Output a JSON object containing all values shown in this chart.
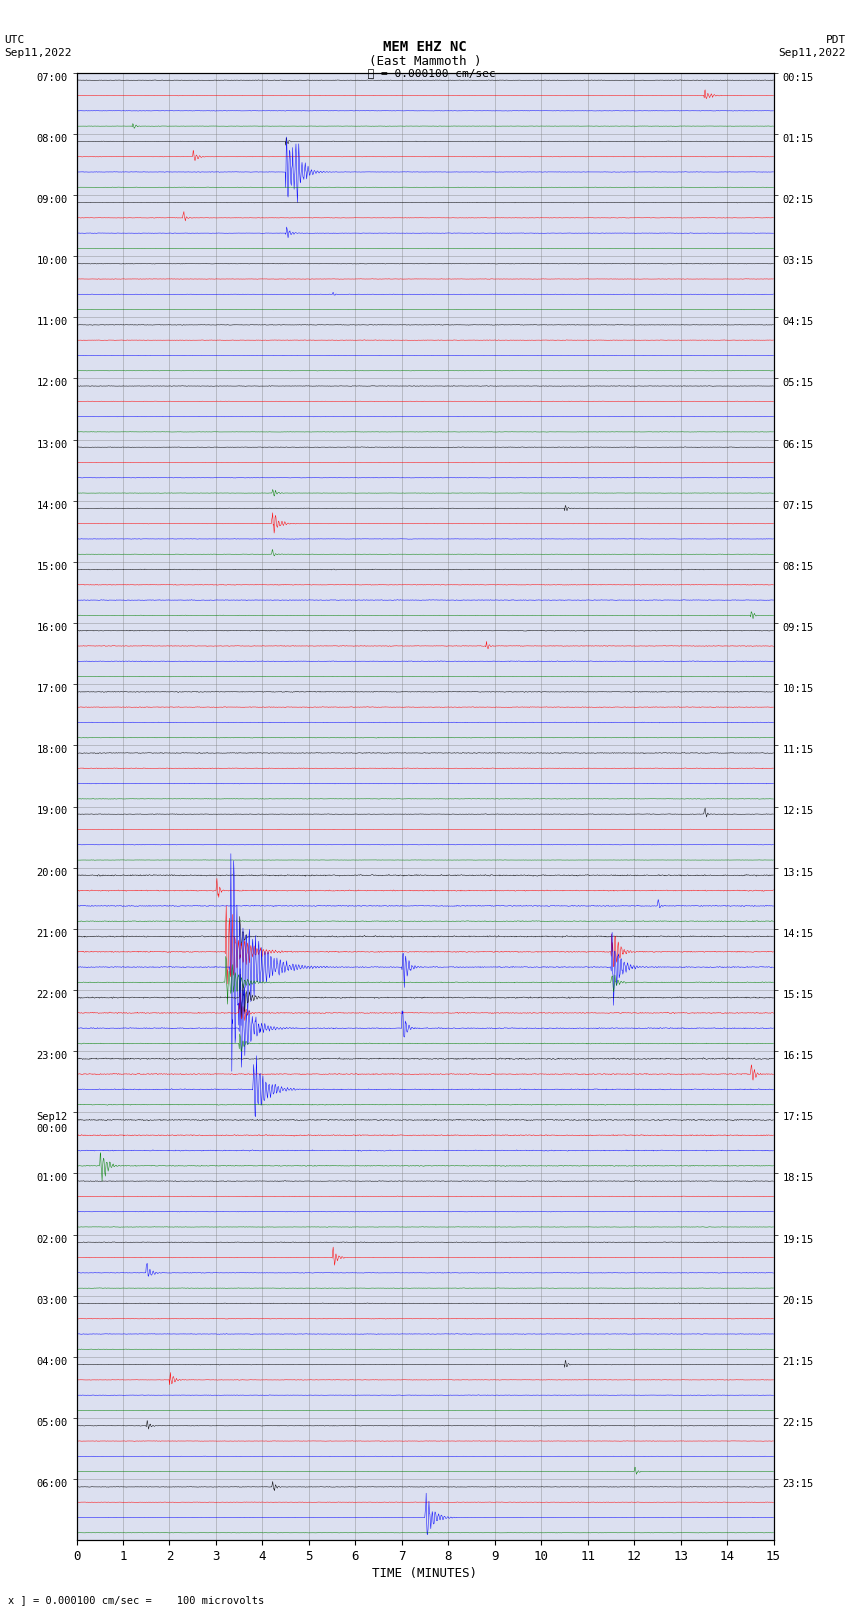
{
  "title_line1": "MEM EHZ NC",
  "title_line2": "(East Mammoth )",
  "scale_label": "= 0.000100 cm/sec",
  "left_header_line1": "UTC",
  "left_header_line2": "Sep11,2022",
  "right_header_line1": "PDT",
  "right_header_line2": "Sep11,2022",
  "bottom_label": "TIME (MINUTES)",
  "bottom_note": "x ] = 0.000100 cm/sec =    100 microvolts",
  "utc_labels": [
    "07:00",
    "08:00",
    "09:00",
    "10:00",
    "11:00",
    "12:00",
    "13:00",
    "14:00",
    "15:00",
    "16:00",
    "17:00",
    "18:00",
    "19:00",
    "20:00",
    "21:00",
    "22:00",
    "23:00",
    "Sep12\n00:00",
    "01:00",
    "02:00",
    "03:00",
    "04:00",
    "05:00",
    "06:00"
  ],
  "pdt_labels": [
    "00:15",
    "01:15",
    "02:15",
    "03:15",
    "04:15",
    "05:15",
    "06:15",
    "07:15",
    "08:15",
    "09:15",
    "10:15",
    "11:15",
    "12:15",
    "13:15",
    "14:15",
    "15:15",
    "16:15",
    "17:15",
    "18:15",
    "19:15",
    "20:15",
    "21:15",
    "22:15",
    "23:15"
  ],
  "colors": [
    "black",
    "red",
    "blue",
    "green"
  ],
  "bg_color": "#ffffff",
  "plot_bg": "#dce0f0",
  "n_rows": 24,
  "traces_per_row": 4,
  "minutes": 15,
  "noise_seed": 12345
}
